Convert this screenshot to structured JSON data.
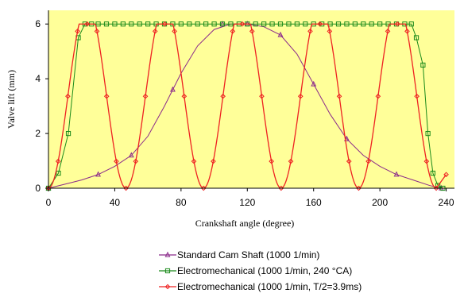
{
  "chart_data": {
    "type": "line",
    "xlabel": "Crankshaft angle (degree)",
    "ylabel": "Valve lift (mm)",
    "xlim": [
      0,
      245
    ],
    "ylim": [
      0,
      6.5
    ],
    "xticks": [
      0,
      40,
      80,
      120,
      160,
      200,
      240
    ],
    "yticks": [
      0,
      2,
      4,
      6
    ],
    "grid": false,
    "plot_background": "#ffff99",
    "legend_position": "bottom",
    "series": [
      {
        "name": "Standard Cam Shaft (1000  1/min)",
        "color": "#8b2a8b",
        "marker": "triangle",
        "x": [
          0,
          10,
          20,
          30,
          40,
          50,
          60,
          70,
          80,
          90,
          100,
          110,
          120,
          130,
          140,
          150,
          160,
          170,
          180,
          190,
          200,
          210,
          220,
          230,
          237
        ],
        "y": [
          0,
          0.15,
          0.3,
          0.5,
          0.8,
          1.2,
          1.9,
          3.0,
          4.2,
          5.2,
          5.8,
          6.0,
          6.0,
          5.9,
          5.6,
          4.9,
          3.8,
          2.7,
          1.8,
          1.2,
          0.8,
          0.5,
          0.3,
          0.1,
          0.0
        ],
        "markers_x": [
          0,
          30,
          50,
          75,
          105,
          120,
          140,
          160,
          180,
          210,
          237
        ],
        "markers_y": [
          0,
          0.5,
          1.2,
          3.6,
          6.0,
          6.0,
          5.6,
          3.8,
          1.8,
          0.5,
          0.0
        ]
      },
      {
        "name": "Electromechanical (1000  1/min, 240 °CA)",
        "color": "#1a8a1a",
        "marker": "square",
        "x": [
          0,
          6,
          12,
          18,
          22,
          26,
          30,
          35,
          40,
          45,
          50,
          55,
          60,
          65,
          70,
          75,
          80,
          85,
          90,
          95,
          100,
          105,
          110,
          115,
          120,
          125,
          130,
          135,
          140,
          145,
          150,
          155,
          160,
          165,
          170,
          175,
          180,
          185,
          190,
          195,
          200,
          205,
          210,
          215,
          219,
          222,
          226,
          229,
          232,
          235,
          238
        ],
        "y": [
          0,
          0.55,
          2.0,
          5.5,
          6.0,
          6.0,
          6.0,
          6.0,
          6.0,
          6.0,
          6.0,
          6.0,
          6.0,
          6.0,
          6.0,
          6.0,
          6.0,
          6.0,
          6.0,
          6.0,
          6.0,
          6.0,
          6.0,
          6.0,
          6.0,
          6.0,
          6.0,
          6.0,
          6.0,
          6.0,
          6.0,
          6.0,
          6.0,
          6.0,
          6.0,
          6.0,
          6.0,
          6.0,
          6.0,
          6.0,
          6.0,
          6.0,
          6.0,
          6.0,
          6.0,
          5.5,
          4.5,
          2.0,
          0.55,
          0.1,
          0.0
        ]
      },
      {
        "name": "Electromechanical (1000  1/min, T/2=3.9ms)",
        "color": "#ee2222",
        "marker": "diamond",
        "period": 46.8,
        "cycles": 5,
        "lift_max": 6.0,
        "end_x": 240,
        "end_y": 0.5
      }
    ]
  }
}
